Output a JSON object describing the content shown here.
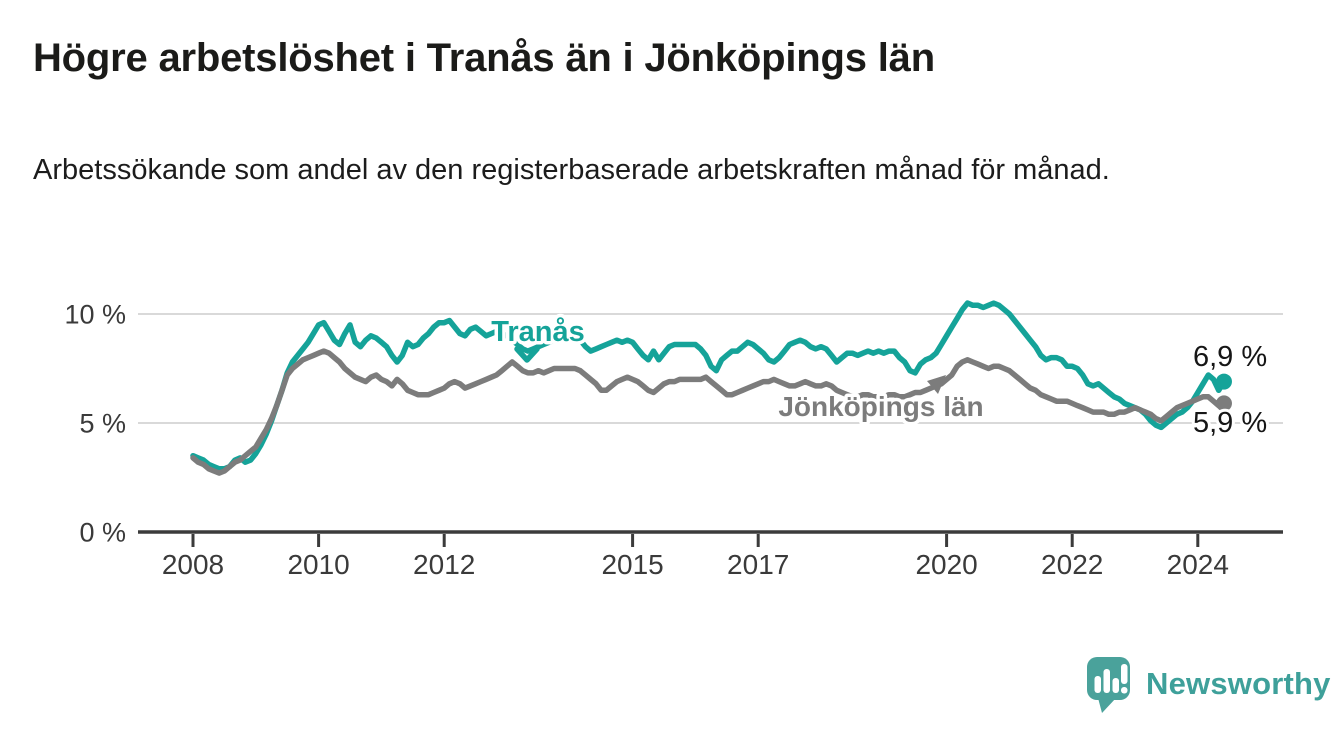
{
  "header": {
    "title": "Högre arbetslöshet i Tranås än i Jönköpings län",
    "subtitle": "Arbetssökande som andel av den registerbaserade arbetskraften månad för månad."
  },
  "footer": {
    "brand": "Newsworthy",
    "logo_icon": "speech-bubble-bar-chart-exclamation"
  },
  "colors": {
    "accent_teal": "#15a399",
    "series_gray": "#7c7c7c",
    "grid": "#d9d9d9",
    "axis": "#3b3b3b",
    "text_dark": "#1b1b19",
    "logo_teal": "#4aa29b"
  },
  "chart_data": {
    "type": "line",
    "title": "Högre arbetslöshet i Tranås än i Jönköpings län",
    "subtitle": "Arbetssökande som andel av den registerbaserade arbetskraften månad för månad.",
    "frequency": "monthly",
    "x_start_year": 2008,
    "x_end": "2024-06",
    "xlim": [
      2007.1,
      2025.45
    ],
    "ylim": [
      0,
      11.5
    ],
    "grid": "horizontal",
    "legend_position": "inline-labels",
    "xticks": [
      {
        "year": 2008,
        "label": "2008"
      },
      {
        "year": 2010,
        "label": "2010"
      },
      {
        "year": 2012,
        "label": "2012"
      },
      {
        "year": 2015,
        "label": "2015"
      },
      {
        "year": 2017,
        "label": "2017"
      },
      {
        "year": 2020,
        "label": "2020"
      },
      {
        "year": 2022,
        "label": "2022"
      },
      {
        "year": 2024,
        "label": "2024"
      }
    ],
    "yticks": [
      {
        "value": 0,
        "label": "0 %"
      },
      {
        "value": 5,
        "label": "5 %"
      },
      {
        "value": 10,
        "label": "10 %"
      }
    ],
    "series": [
      {
        "name": "Tranås",
        "slug": "tranas",
        "color": "#15a399",
        "end_label": "6,9 %",
        "end_value": 6.9,
        "values": [
          3.5,
          3.4,
          3.3,
          3.1,
          3.0,
          2.9,
          2.9,
          3.0,
          3.3,
          3.4,
          3.2,
          3.3,
          3.6,
          4.0,
          4.5,
          5.1,
          5.8,
          6.5,
          7.3,
          7.8,
          8.1,
          8.4,
          8.7,
          9.1,
          9.5,
          9.6,
          9.2,
          8.8,
          8.6,
          9.1,
          9.5,
          8.7,
          8.5,
          8.8,
          9.0,
          8.9,
          8.7,
          8.5,
          8.1,
          7.8,
          8.1,
          8.7,
          8.5,
          8.6,
          8.9,
          9.1,
          9.4,
          9.6,
          9.6,
          9.7,
          9.4,
          9.1,
          9.0,
          9.3,
          9.4,
          9.2,
          9.0,
          9.1,
          9.2,
          9.1,
          9.0,
          8.8,
          8.6,
          8.4,
          8.3,
          8.4,
          8.5,
          8.6,
          8.7,
          8.8,
          8.9,
          9.0,
          8.9,
          8.9,
          8.8,
          8.5,
          8.3,
          8.4,
          8.5,
          8.6,
          8.7,
          8.8,
          8.7,
          8.8,
          8.7,
          8.4,
          8.1,
          7.9,
          8.3,
          7.9,
          8.2,
          8.5,
          8.6,
          8.6,
          8.6,
          8.6,
          8.6,
          8.4,
          8.1,
          7.6,
          7.4,
          7.9,
          8.1,
          8.3,
          8.3,
          8.5,
          8.7,
          8.6,
          8.4,
          8.2,
          7.9,
          7.8,
          8.0,
          8.3,
          8.6,
          8.7,
          8.8,
          8.7,
          8.5,
          8.4,
          8.5,
          8.4,
          8.1,
          7.8,
          8.0,
          8.2,
          8.2,
          8.1,
          8.2,
          8.3,
          8.2,
          8.3,
          8.2,
          8.3,
          8.3,
          8.0,
          7.8,
          7.4,
          7.3,
          7.7,
          7.9,
          8.0,
          8.2,
          8.6,
          9.0,
          9.4,
          9.8,
          10.2,
          10.5,
          10.4,
          10.4,
          10.3,
          10.4,
          10.5,
          10.4,
          10.2,
          10.0,
          9.7,
          9.4,
          9.1,
          8.8,
          8.5,
          8.1,
          7.9,
          8.0,
          8.0,
          7.9,
          7.6,
          7.6,
          7.5,
          7.2,
          6.8,
          6.7,
          6.8,
          6.6,
          6.4,
          6.2,
          6.1,
          5.9,
          5.8,
          5.7,
          5.6,
          5.4,
          5.1,
          4.9,
          4.8,
          5.0,
          5.2,
          5.4,
          5.5,
          5.7,
          6.0,
          6.4,
          6.8,
          7.2,
          7.0,
          6.5,
          6.9
        ]
      },
      {
        "name": "Jönköpings län",
        "slug": "jonkopings-lan",
        "color": "#7c7c7c",
        "end_label": "5,9 %",
        "end_value": 5.9,
        "values": [
          3.4,
          3.2,
          3.1,
          2.9,
          2.8,
          2.7,
          2.8,
          3.0,
          3.2,
          3.3,
          3.5,
          3.7,
          3.9,
          4.3,
          4.7,
          5.2,
          5.8,
          6.5,
          7.2,
          7.5,
          7.7,
          7.9,
          8.0,
          8.1,
          8.2,
          8.3,
          8.2,
          8.0,
          7.8,
          7.5,
          7.3,
          7.1,
          7.0,
          6.9,
          7.1,
          7.2,
          7.0,
          6.9,
          6.7,
          7.0,
          6.8,
          6.5,
          6.4,
          6.3,
          6.3,
          6.3,
          6.4,
          6.5,
          6.6,
          6.8,
          6.9,
          6.8,
          6.6,
          6.7,
          6.8,
          6.9,
          7.0,
          7.1,
          7.2,
          7.4,
          7.6,
          7.8,
          7.6,
          7.4,
          7.3,
          7.3,
          7.4,
          7.3,
          7.4,
          7.5,
          7.5,
          7.5,
          7.5,
          7.5,
          7.4,
          7.2,
          7.0,
          6.8,
          6.5,
          6.5,
          6.7,
          6.9,
          7.0,
          7.1,
          7.0,
          6.9,
          6.7,
          6.5,
          6.4,
          6.6,
          6.8,
          6.9,
          6.9,
          7.0,
          7.0,
          7.0,
          7.0,
          7.0,
          7.1,
          6.9,
          6.7,
          6.5,
          6.3,
          6.3,
          6.4,
          6.5,
          6.6,
          6.7,
          6.8,
          6.9,
          6.9,
          7.0,
          6.9,
          6.8,
          6.7,
          6.7,
          6.8,
          6.9,
          6.8,
          6.7,
          6.7,
          6.8,
          6.7,
          6.5,
          6.4,
          6.3,
          6.2,
          6.2,
          6.3,
          6.3,
          6.2,
          6.2,
          6.2,
          6.3,
          6.3,
          6.2,
          6.2,
          6.3,
          6.4,
          6.4,
          6.5,
          6.6,
          6.7,
          6.8,
          7.0,
          7.2,
          7.6,
          7.8,
          7.9,
          7.8,
          7.7,
          7.6,
          7.5,
          7.6,
          7.6,
          7.5,
          7.4,
          7.2,
          7.0,
          6.8,
          6.6,
          6.5,
          6.3,
          6.2,
          6.1,
          6.0,
          6.0,
          6.0,
          5.9,
          5.8,
          5.7,
          5.6,
          5.5,
          5.5,
          5.5,
          5.4,
          5.4,
          5.5,
          5.5,
          5.6,
          5.7,
          5.6,
          5.5,
          5.4,
          5.2,
          5.1,
          5.3,
          5.5,
          5.7,
          5.8,
          5.9,
          6.0,
          6.1,
          6.2,
          6.2,
          6.0,
          5.8,
          5.9
        ]
      }
    ]
  }
}
